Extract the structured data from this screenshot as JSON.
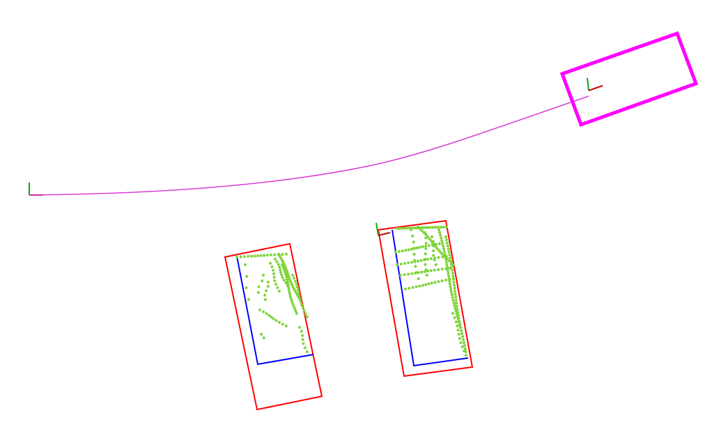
{
  "scene": {
    "background": "#ffffff",
    "colors": {
      "trajectory": "#d63bd6",
      "vehicle_box": "#ff00ff",
      "outer_box": "#ff0000",
      "inner_box": "#0000ff",
      "point_cloud": "#7fd43a",
      "axis_x": "#cc0000",
      "axis_y": "#00b000"
    },
    "icons": [
      "origin-axis-icon",
      "vehicle-axis-icon",
      "slot-axis-icon"
    ]
  }
}
